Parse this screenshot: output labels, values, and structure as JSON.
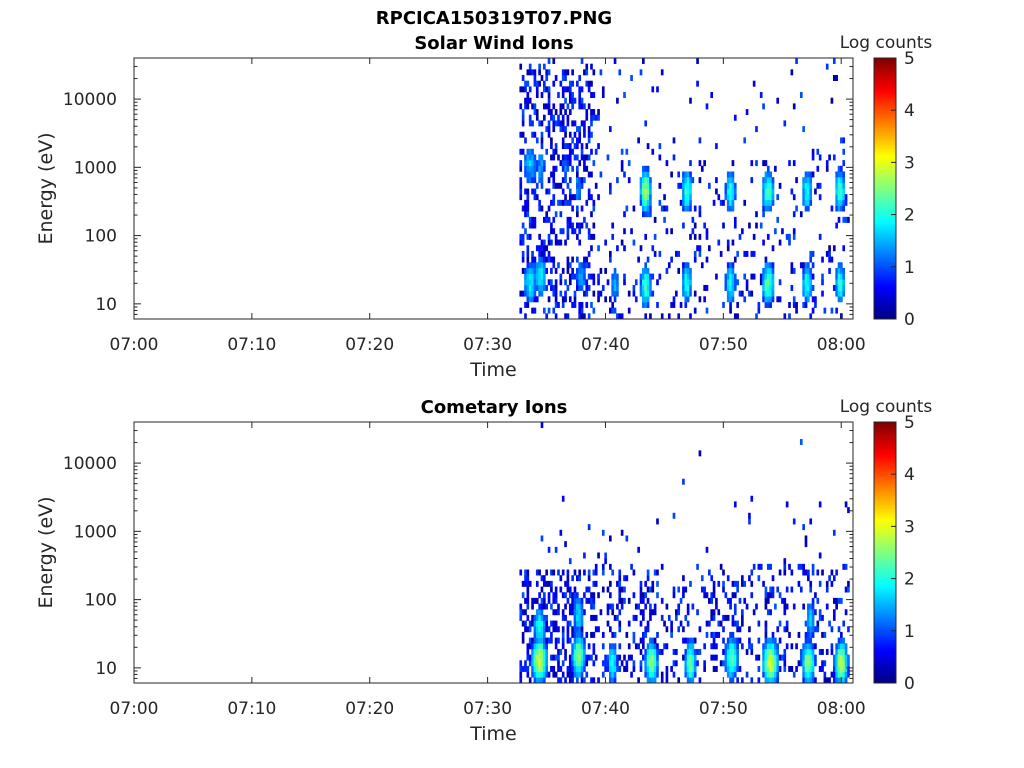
{
  "figure": {
    "title": "RPCICA150319T07.PNG"
  },
  "chart_data": [
    {
      "type": "heatmap",
      "title": "Solar Wind Ions",
      "xlabel": "Time",
      "ylabel": "Energy (eV)",
      "x_ticks": [
        "07:00",
        "07:10",
        "07:20",
        "07:30",
        "07:40",
        "07:50",
        "08:00"
      ],
      "x_range_min": [
        0,
        61
      ],
      "y_ticks": [
        "10",
        "100",
        "1000",
        "10000"
      ],
      "y_range_ev": [
        6,
        40000
      ],
      "y_scale": "log",
      "colorbar": {
        "label": "Log counts",
        "min": 0,
        "max": 5,
        "ticks": [
          "0",
          "1",
          "2",
          "3",
          "4",
          "5"
        ]
      },
      "colormap": "jet",
      "data_start_min": 32.7,
      "spots": [
        {
          "t": 33.5,
          "e": 1100,
          "w": 0.7,
          "v": 1.6
        },
        {
          "t": 33.5,
          "e": 20,
          "w": 0.7,
          "v": 1.8
        },
        {
          "t": 34.4,
          "e": 1000,
          "w": 0.5,
          "v": 1.4
        },
        {
          "t": 34.4,
          "e": 25,
          "w": 0.6,
          "v": 1.8
        },
        {
          "t": 36.5,
          "e": 1000,
          "w": 0.4,
          "v": 1.2
        },
        {
          "t": 37.6,
          "e": 500,
          "w": 0.4,
          "v": 1.3
        },
        {
          "t": 37.8,
          "e": 25,
          "w": 0.5,
          "v": 1.5
        },
        {
          "t": 40.7,
          "e": 20,
          "w": 0.4,
          "v": 1.5
        },
        {
          "t": 43.3,
          "e": 450,
          "w": 0.5,
          "v": 2.7
        },
        {
          "t": 43.3,
          "e": 18,
          "w": 0.5,
          "v": 2.2
        },
        {
          "t": 46.8,
          "e": 450,
          "w": 0.5,
          "v": 2.2
        },
        {
          "t": 46.8,
          "e": 20,
          "w": 0.5,
          "v": 2.0
        },
        {
          "t": 50.5,
          "e": 450,
          "w": 0.5,
          "v": 2.1
        },
        {
          "t": 50.5,
          "e": 20,
          "w": 0.5,
          "v": 2.0
        },
        {
          "t": 53.7,
          "e": 450,
          "w": 0.6,
          "v": 2.2
        },
        {
          "t": 53.7,
          "e": 20,
          "w": 0.6,
          "v": 2.3
        },
        {
          "t": 57.0,
          "e": 450,
          "w": 0.5,
          "v": 2.0
        },
        {
          "t": 57.0,
          "e": 20,
          "w": 0.5,
          "v": 2.0
        },
        {
          "t": 59.8,
          "e": 450,
          "w": 0.5,
          "v": 2.3
        },
        {
          "t": 59.8,
          "e": 20,
          "w": 0.5,
          "v": 2.0
        }
      ]
    },
    {
      "type": "heatmap",
      "title": "Cometary Ions",
      "xlabel": "Time",
      "ylabel": "Energy (eV)",
      "x_ticks": [
        "07:00",
        "07:10",
        "07:20",
        "07:30",
        "07:40",
        "07:50",
        "08:00"
      ],
      "x_range_min": [
        0,
        61
      ],
      "y_ticks": [
        "10",
        "100",
        "1000",
        "10000"
      ],
      "y_range_ev": [
        6,
        40000
      ],
      "y_scale": "log",
      "colorbar": {
        "label": "Log counts",
        "min": 0,
        "max": 5,
        "ticks": [
          "0",
          "1",
          "2",
          "3",
          "4",
          "5"
        ]
      },
      "colormap": "jet",
      "data_start_min": 32.7,
      "spots": [
        {
          "t": 34.3,
          "e": 13,
          "w": 0.7,
          "v": 2.9
        },
        {
          "t": 34.3,
          "e": 40,
          "w": 0.6,
          "v": 2.0
        },
        {
          "t": 37.6,
          "e": 15,
          "w": 0.6,
          "v": 2.6
        },
        {
          "t": 37.6,
          "e": 60,
          "w": 0.5,
          "v": 1.8
        },
        {
          "t": 40.5,
          "e": 12,
          "w": 0.5,
          "v": 2.0
        },
        {
          "t": 43.8,
          "e": 12,
          "w": 0.6,
          "v": 2.6
        },
        {
          "t": 47.1,
          "e": 12,
          "w": 0.5,
          "v": 2.5
        },
        {
          "t": 50.6,
          "e": 14,
          "w": 0.6,
          "v": 2.4
        },
        {
          "t": 53.9,
          "e": 12,
          "w": 0.7,
          "v": 3.0
        },
        {
          "t": 57.1,
          "e": 12,
          "w": 0.6,
          "v": 2.6
        },
        {
          "t": 59.9,
          "e": 12,
          "w": 0.6,
          "v": 2.8
        },
        {
          "t": 57.3,
          "e": 50,
          "w": 0.5,
          "v": 1.6
        }
      ]
    }
  ]
}
